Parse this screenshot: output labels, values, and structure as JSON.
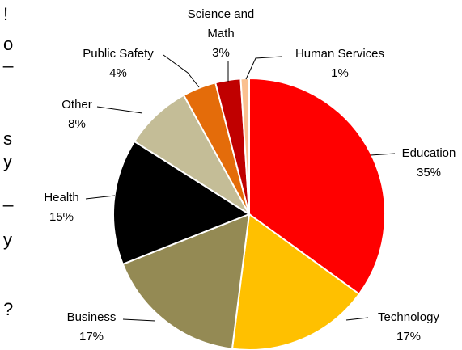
{
  "chart_data": {
    "type": "pie",
    "categories": [
      "Education",
      "Technology",
      "Business",
      "Health",
      "Other",
      "Public Safety",
      "Science and Math",
      "Human Services"
    ],
    "values": [
      35,
      17,
      17,
      15,
      8,
      4,
      3,
      1
    ],
    "value_labels": [
      "35%",
      "17%",
      "17%",
      "15%",
      "8%",
      "4%",
      "3%",
      "1%"
    ],
    "colors": [
      "#ff0000",
      "#ffc000",
      "#948a54",
      "#000000",
      "#c4bd97",
      "#e46c0a",
      "#c00000",
      "#fac090"
    ]
  },
  "clipped_text": [
    "!",
    "o",
    "_",
    "s",
    "y",
    "_",
    "y",
    "?"
  ]
}
